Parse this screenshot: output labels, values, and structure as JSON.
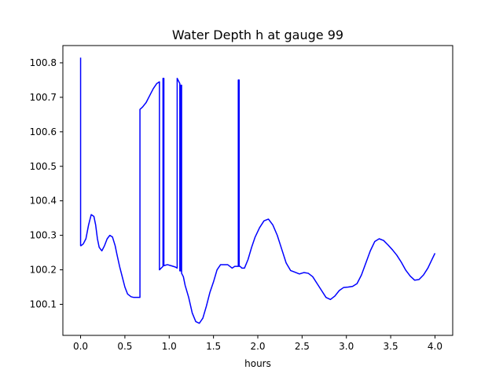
{
  "chart_data": {
    "type": "line",
    "title": "Water Depth h at gauge 99",
    "xlabel": "hours",
    "ylabel": "",
    "xlim": [
      -0.2,
      4.2
    ],
    "ylim": [
      100.01,
      100.85
    ],
    "xticks": [
      0.0,
      0.5,
      1.0,
      1.5,
      2.0,
      2.5,
      3.0,
      3.5,
      4.0
    ],
    "xtick_labels": [
      "0.0",
      "0.5",
      "1.0",
      "1.5",
      "2.0",
      "2.5",
      "3.0",
      "3.5",
      "4.0"
    ],
    "yticks": [
      100.1,
      100.2,
      100.3,
      100.4,
      100.5,
      100.6,
      100.7,
      100.8
    ],
    "ytick_labels": [
      "100.1",
      "100.2",
      "100.3",
      "100.4",
      "100.5",
      "100.6",
      "100.7",
      "100.8"
    ],
    "grid": false,
    "series": [
      {
        "color": "#0000ff",
        "x": [
          0.0,
          0.0,
          0.005,
          0.03,
          0.06,
          0.09,
          0.12,
          0.15,
          0.17,
          0.19,
          0.21,
          0.24,
          0.27,
          0.3,
          0.33,
          0.36,
          0.39,
          0.41,
          0.44,
          0.47,
          0.5,
          0.53,
          0.57,
          0.6,
          0.63,
          0.67,
          0.67,
          0.7,
          0.74,
          0.78,
          0.82,
          0.86,
          0.89,
          0.89,
          0.93,
          0.93,
          0.94,
          0.94,
          0.98,
          1.02,
          1.07,
          1.09,
          1.09,
          1.12,
          1.12,
          1.13,
          1.13,
          1.14,
          1.14,
          1.16,
          1.18,
          1.22,
          1.26,
          1.3,
          1.34,
          1.38,
          1.42,
          1.46,
          1.5,
          1.54,
          1.58,
          1.62,
          1.66,
          1.71,
          1.74,
          1.77,
          1.78,
          1.78,
          1.79,
          1.79,
          1.8,
          1.82,
          1.85,
          1.89,
          1.93,
          1.97,
          2.02,
          2.07,
          2.12,
          2.17,
          2.22,
          2.27,
          2.32,
          2.37,
          2.42,
          2.47,
          2.52,
          2.57,
          2.62,
          2.67,
          2.72,
          2.77,
          2.82,
          2.87,
          2.92,
          2.97,
          3.02,
          3.07,
          3.12,
          3.17,
          3.22,
          3.27,
          3.32,
          3.37,
          3.42,
          3.47,
          3.52,
          3.57,
          3.62,
          3.67,
          3.72,
          3.77,
          3.82,
          3.87,
          3.92,
          3.97,
          4.0
        ],
        "y": [
          100.815,
          100.27,
          100.27,
          100.275,
          100.29,
          100.33,
          100.36,
          100.355,
          100.33,
          100.29,
          100.265,
          100.255,
          100.27,
          100.29,
          100.3,
          100.295,
          100.27,
          100.245,
          100.21,
          100.18,
          100.15,
          100.13,
          100.122,
          100.12,
          100.12,
          100.12,
          100.665,
          100.672,
          100.685,
          100.705,
          100.725,
          100.74,
          100.745,
          100.2,
          100.21,
          100.755,
          100.755,
          100.212,
          100.215,
          100.212,
          100.208,
          100.205,
          100.755,
          100.74,
          100.197,
          100.197,
          100.735,
          100.735,
          100.19,
          100.18,
          100.155,
          100.12,
          100.075,
          100.05,
          100.045,
          100.06,
          100.095,
          100.135,
          100.165,
          100.2,
          100.215,
          100.215,
          100.215,
          100.205,
          100.21,
          100.21,
          100.21,
          100.75,
          100.75,
          100.21,
          100.21,
          100.205,
          100.205,
          100.23,
          100.265,
          100.295,
          100.322,
          100.342,
          100.347,
          100.33,
          100.3,
          100.26,
          100.22,
          100.198,
          100.193,
          100.188,
          100.192,
          100.19,
          100.18,
          100.16,
          100.14,
          100.12,
          100.114,
          100.124,
          100.14,
          100.149,
          100.15,
          100.152,
          100.16,
          100.185,
          100.22,
          100.255,
          100.282,
          100.29,
          100.285,
          100.272,
          100.258,
          100.242,
          100.222,
          100.199,
          100.182,
          100.17,
          100.172,
          100.185,
          100.205,
          100.232,
          100.248
        ]
      }
    ]
  }
}
